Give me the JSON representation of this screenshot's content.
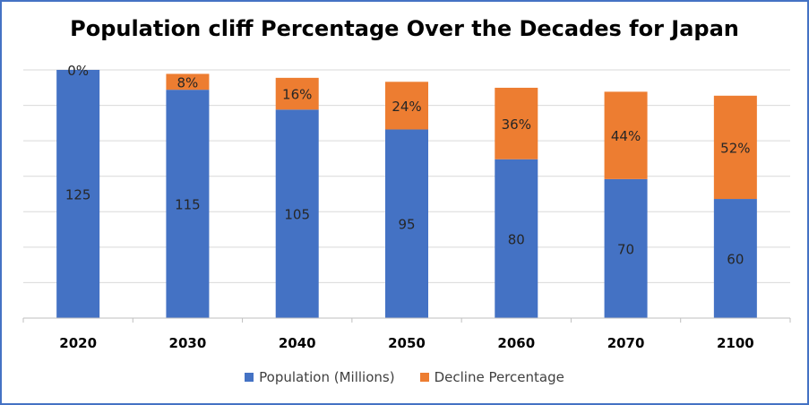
{
  "chart_data": {
    "type": "bar",
    "stacked": true,
    "title": "Population cliff Percentage Over the Decades for Japan",
    "categories": [
      "2020",
      "2030",
      "2040",
      "2050",
      "2060",
      "2070",
      "2100"
    ],
    "series": [
      {
        "name": "Population (Millions)",
        "color": "#4472c4",
        "values": [
          125,
          115,
          105,
          95,
          80,
          70,
          60
        ],
        "labels": [
          "125",
          "115",
          "105",
          "95",
          "80",
          "70",
          "60"
        ]
      },
      {
        "name": "Decline Percentage",
        "color": "#ed7d31",
        "values": [
          0,
          8,
          16,
          24,
          36,
          44,
          52
        ],
        "labels": [
          "0%",
          "8%",
          "16%",
          "24%",
          "36%",
          "44%",
          "52%"
        ]
      }
    ],
    "grid": true,
    "legend": "bottom"
  }
}
